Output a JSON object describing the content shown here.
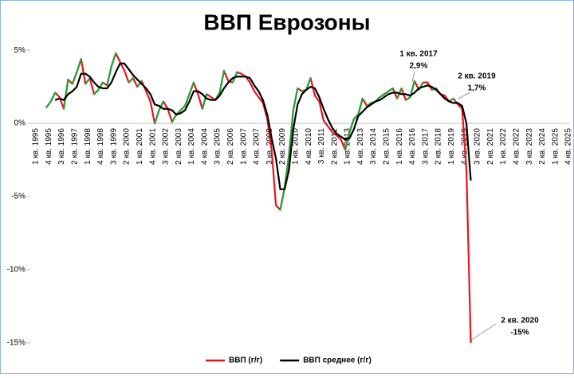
{
  "chart_data": {
    "type": "line",
    "title": "ВВП Еврозоны",
    "categories": [
      "1 кв. 1995",
      null,
      null,
      "4 кв. 1995",
      null,
      null,
      "3 кв. 1996",
      null,
      null,
      "2 кв. 1997",
      null,
      null,
      "1 кв. 1998",
      null,
      null,
      "4 кв. 1998",
      null,
      null,
      "3 кв. 1999",
      null,
      null,
      "2 кв. 2000",
      null,
      null,
      "1 кв. 2001",
      null,
      null,
      "4 кв. 2001",
      null,
      null,
      "3 кв. 2002",
      null,
      null,
      "2 кв. 2003",
      null,
      null,
      "1 кв. 2004",
      null,
      null,
      "4 кв. 2004",
      null,
      null,
      "3 кв. 2005",
      null,
      null,
      "2 кв. 2006",
      null,
      null,
      "1 кв. 2007",
      null,
      null,
      "4 кв. 2007",
      null,
      null,
      "3 кв. 2008",
      null,
      null,
      "2 кв. 2009",
      null,
      null,
      "1 кв. 2010",
      null,
      null,
      "4 кв. 2010",
      null,
      null,
      "3 кв. 2011",
      null,
      null,
      "2 кв. 2012",
      null,
      null,
      "1 кв. 2013",
      null,
      null,
      "4 кв. 2013",
      null,
      null,
      "3 кв. 2014",
      null,
      null,
      "2 кв. 2015",
      null,
      null,
      "1 кв. 2016",
      null,
      null,
      "4 кв. 2016",
      null,
      null,
      "3 кв. 2017",
      null,
      null,
      "2 кв. 2018",
      null,
      null,
      "1 кв. 2019",
      null,
      null,
      "4 кв. 2019",
      null,
      null,
      "3 кв. 2020",
      null,
      null,
      "2 кв. 2021",
      null,
      null,
      "1 кв. 2022",
      null,
      null,
      "4 кв. 2022",
      null,
      null,
      "3 кв. 2023",
      null,
      null,
      "2 кв. 2024",
      null,
      null,
      "1 кв. 2025",
      null,
      null,
      "4 кв. 2025"
    ],
    "series": [
      {
        "name": "ВВП (г/г)",
        "color": "#e8141c",
        "up_color": "#22a33a",
        "values": [
          null,
          null,
          null,
          1.1,
          1.5,
          2.1,
          1.8,
          1.0,
          3.0,
          2.7,
          3.5,
          4.4,
          2.7,
          3.1,
          2.0,
          2.3,
          2.8,
          2.6,
          3.9,
          4.8,
          4.2,
          3.6,
          2.8,
          3.1,
          2.5,
          2.9,
          2.2,
          1.5,
          0.0,
          0.9,
          1.5,
          1.0,
          0.1,
          0.6,
          0.9,
          1.2,
          2.0,
          2.8,
          2.0,
          1.0,
          2.0,
          1.8,
          1.6,
          2.1,
          3.6,
          2.9,
          2.8,
          3.5,
          3.4,
          3.2,
          2.8,
          2.2,
          1.8,
          1.4,
          0.3,
          -1.8,
          -5.6,
          -5.9,
          -4.4,
          -2.2,
          0.9,
          2.4,
          2.2,
          2.3,
          3.1,
          1.9,
          1.5,
          0.2,
          -0.2,
          -0.6,
          -0.8,
          -1.1,
          -1.8,
          -0.6,
          0.3,
          0.6,
          1.7,
          1.2,
          1.4,
          1.5,
          1.8,
          2.0,
          2.2,
          2.4,
          1.7,
          2.4,
          1.6,
          1.8,
          2.9,
          2.3,
          2.8,
          2.8,
          2.3,
          2.4,
          2.0,
          1.9,
          1.5,
          1.7,
          1.3,
          1.0,
          -3.2,
          -15,
          null,
          null,
          null,
          null,
          null,
          null,
          null,
          null,
          null,
          null,
          null,
          null,
          null,
          null,
          null,
          null,
          null,
          null,
          null,
          null,
          null,
          null
        ]
      },
      {
        "name": "ВВП среднее (г/г)",
        "color": "#000000",
        "values": [
          null,
          null,
          null,
          null,
          null,
          1.6,
          1.7,
          1.6,
          2.0,
          2.2,
          2.5,
          3.4,
          3.4,
          3.2,
          2.8,
          2.5,
          2.4,
          2.4,
          2.8,
          3.5,
          4.1,
          4.1,
          3.7,
          3.3,
          3.0,
          2.7,
          2.4,
          2.0,
          1.3,
          1.2,
          1.0,
          1.0,
          0.9,
          0.6,
          0.7,
          0.9,
          1.5,
          2.2,
          2.2,
          2.0,
          1.7,
          1.6,
          1.6,
          1.9,
          2.4,
          2.8,
          3.1,
          3.2,
          3.2,
          3.2,
          3.1,
          2.6,
          2.2,
          1.6,
          0.6,
          -1.0,
          -2.4,
          -4.5,
          -4.5,
          -3.2,
          -0.4,
          1.3,
          2.0,
          2.3,
          2.5,
          2.4,
          1.8,
          1.0,
          0.3,
          -0.3,
          -0.7,
          -0.9,
          -1.1,
          -1.0,
          -0.4,
          0.5,
          0.8,
          1.1,
          1.3,
          1.5,
          1.6,
          1.8,
          2.0,
          2.1,
          2.1,
          2.0,
          2.0,
          1.9,
          2.1,
          2.4,
          2.5,
          2.6,
          2.5,
          2.3,
          2.0,
          1.7,
          1.5,
          1.4,
          1.4,
          1.2,
          0.0,
          -3.9,
          null,
          null,
          null,
          null,
          null,
          null,
          null,
          null,
          null,
          null,
          null,
          null,
          null,
          null,
          null,
          null,
          null,
          null,
          null,
          null,
          null,
          null
        ]
      }
    ],
    "ylim": [
      -15.5,
      5.5
    ],
    "yticks": [
      {
        "value": 5,
        "label": "5%"
      },
      {
        "value": 0,
        "label": "0%"
      },
      {
        "value": -5,
        "label": "-5%"
      },
      {
        "value": -10,
        "label": "-10%"
      },
      {
        "value": -15,
        "label": "-15%"
      }
    ],
    "annotations": [
      [
        "1 кв. 2017",
        "2,9%"
      ],
      [
        "2 кв. 2019",
        "1,7%"
      ],
      [
        "2 кв. 2020",
        "-15%"
      ]
    ],
    "legend": "bottom"
  }
}
